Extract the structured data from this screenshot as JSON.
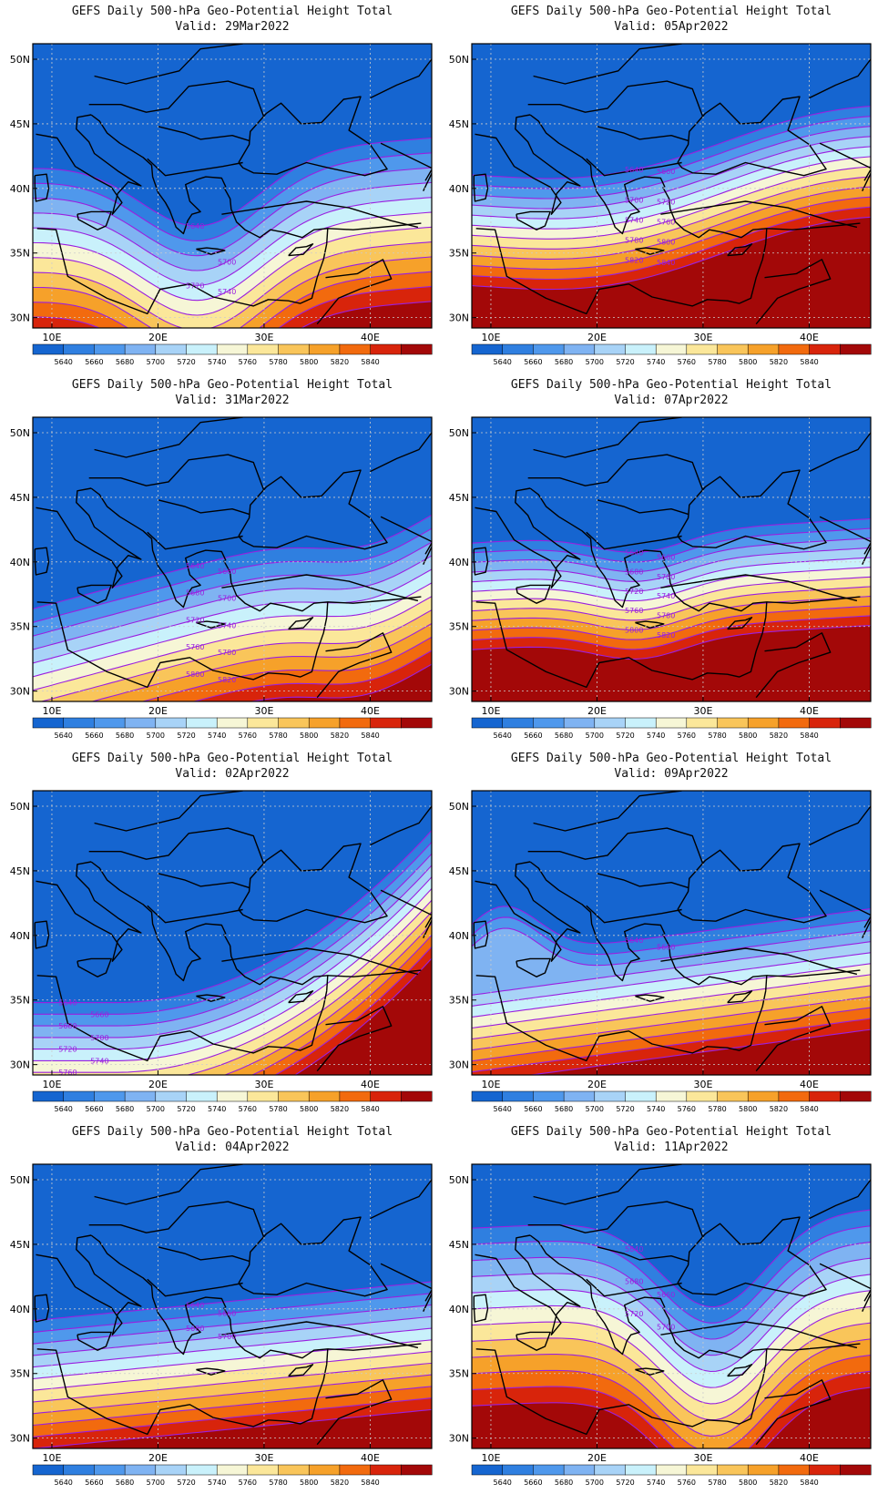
{
  "figure": {
    "title_line1": "GEFS Daily 500-hPa Geo-Potential Height Total",
    "lon_ticks": [
      "10E",
      "20E",
      "30E",
      "40E"
    ],
    "lat_ticks": [
      "50N",
      "45N",
      "40N",
      "35N",
      "30N"
    ],
    "colorbar": {
      "labels": [
        "5640",
        "5660",
        "5680",
        "5700",
        "5720",
        "5740",
        "5760",
        "5780",
        "5800",
        "5820",
        "5840"
      ],
      "colors": [
        "#1565d0",
        "#2f7fe0",
        "#4f98ec",
        "#7fb3f2",
        "#a8d3f7",
        "#c9f1fb",
        "#f6f6d6",
        "#fbe79a",
        "#f9c55a",
        "#f6a12a",
        "#f26a0e",
        "#d8240b",
        "#a30808"
      ],
      "contour_color": "#9a1fe0"
    }
  },
  "panels": [
    {
      "valid": "Valid: 29Mar2022",
      "labels": [
        "5640",
        "5700",
        "5720",
        "5740"
      ]
    },
    {
      "valid": "Valid: 05Apr2022",
      "labels": [
        "5640",
        "5660",
        "5700",
        "5720",
        "5740",
        "5760",
        "5780",
        "5800",
        "5820",
        "5840"
      ]
    },
    {
      "valid": "Valid: 31Mar2022",
      "labels": [
        "5640",
        "5660",
        "5680",
        "5700",
        "5720",
        "5740",
        "5760",
        "5780",
        "5800",
        "5820"
      ]
    },
    {
      "valid": "Valid: 07Apr2022",
      "labels": [
        "5640",
        "5660",
        "5680",
        "5700",
        "5720",
        "5740",
        "5760",
        "5780",
        "5800",
        "5820"
      ]
    },
    {
      "valid": "Valid: 02Apr2022",
      "labels": [
        "5640",
        "5660",
        "5680",
        "5700",
        "5720",
        "5740",
        "5760"
      ]
    },
    {
      "valid": "Valid: 09Apr2022",
      "labels": [
        "5640",
        "5660"
      ]
    },
    {
      "valid": "Valid: 04Apr2022",
      "labels": [
        "5640",
        "5660",
        "5680",
        "5700"
      ]
    },
    {
      "valid": "Valid: 11Apr2022",
      "labels": [
        "5640",
        "5660",
        "5680",
        "5700",
        "5720"
      ]
    }
  ]
}
